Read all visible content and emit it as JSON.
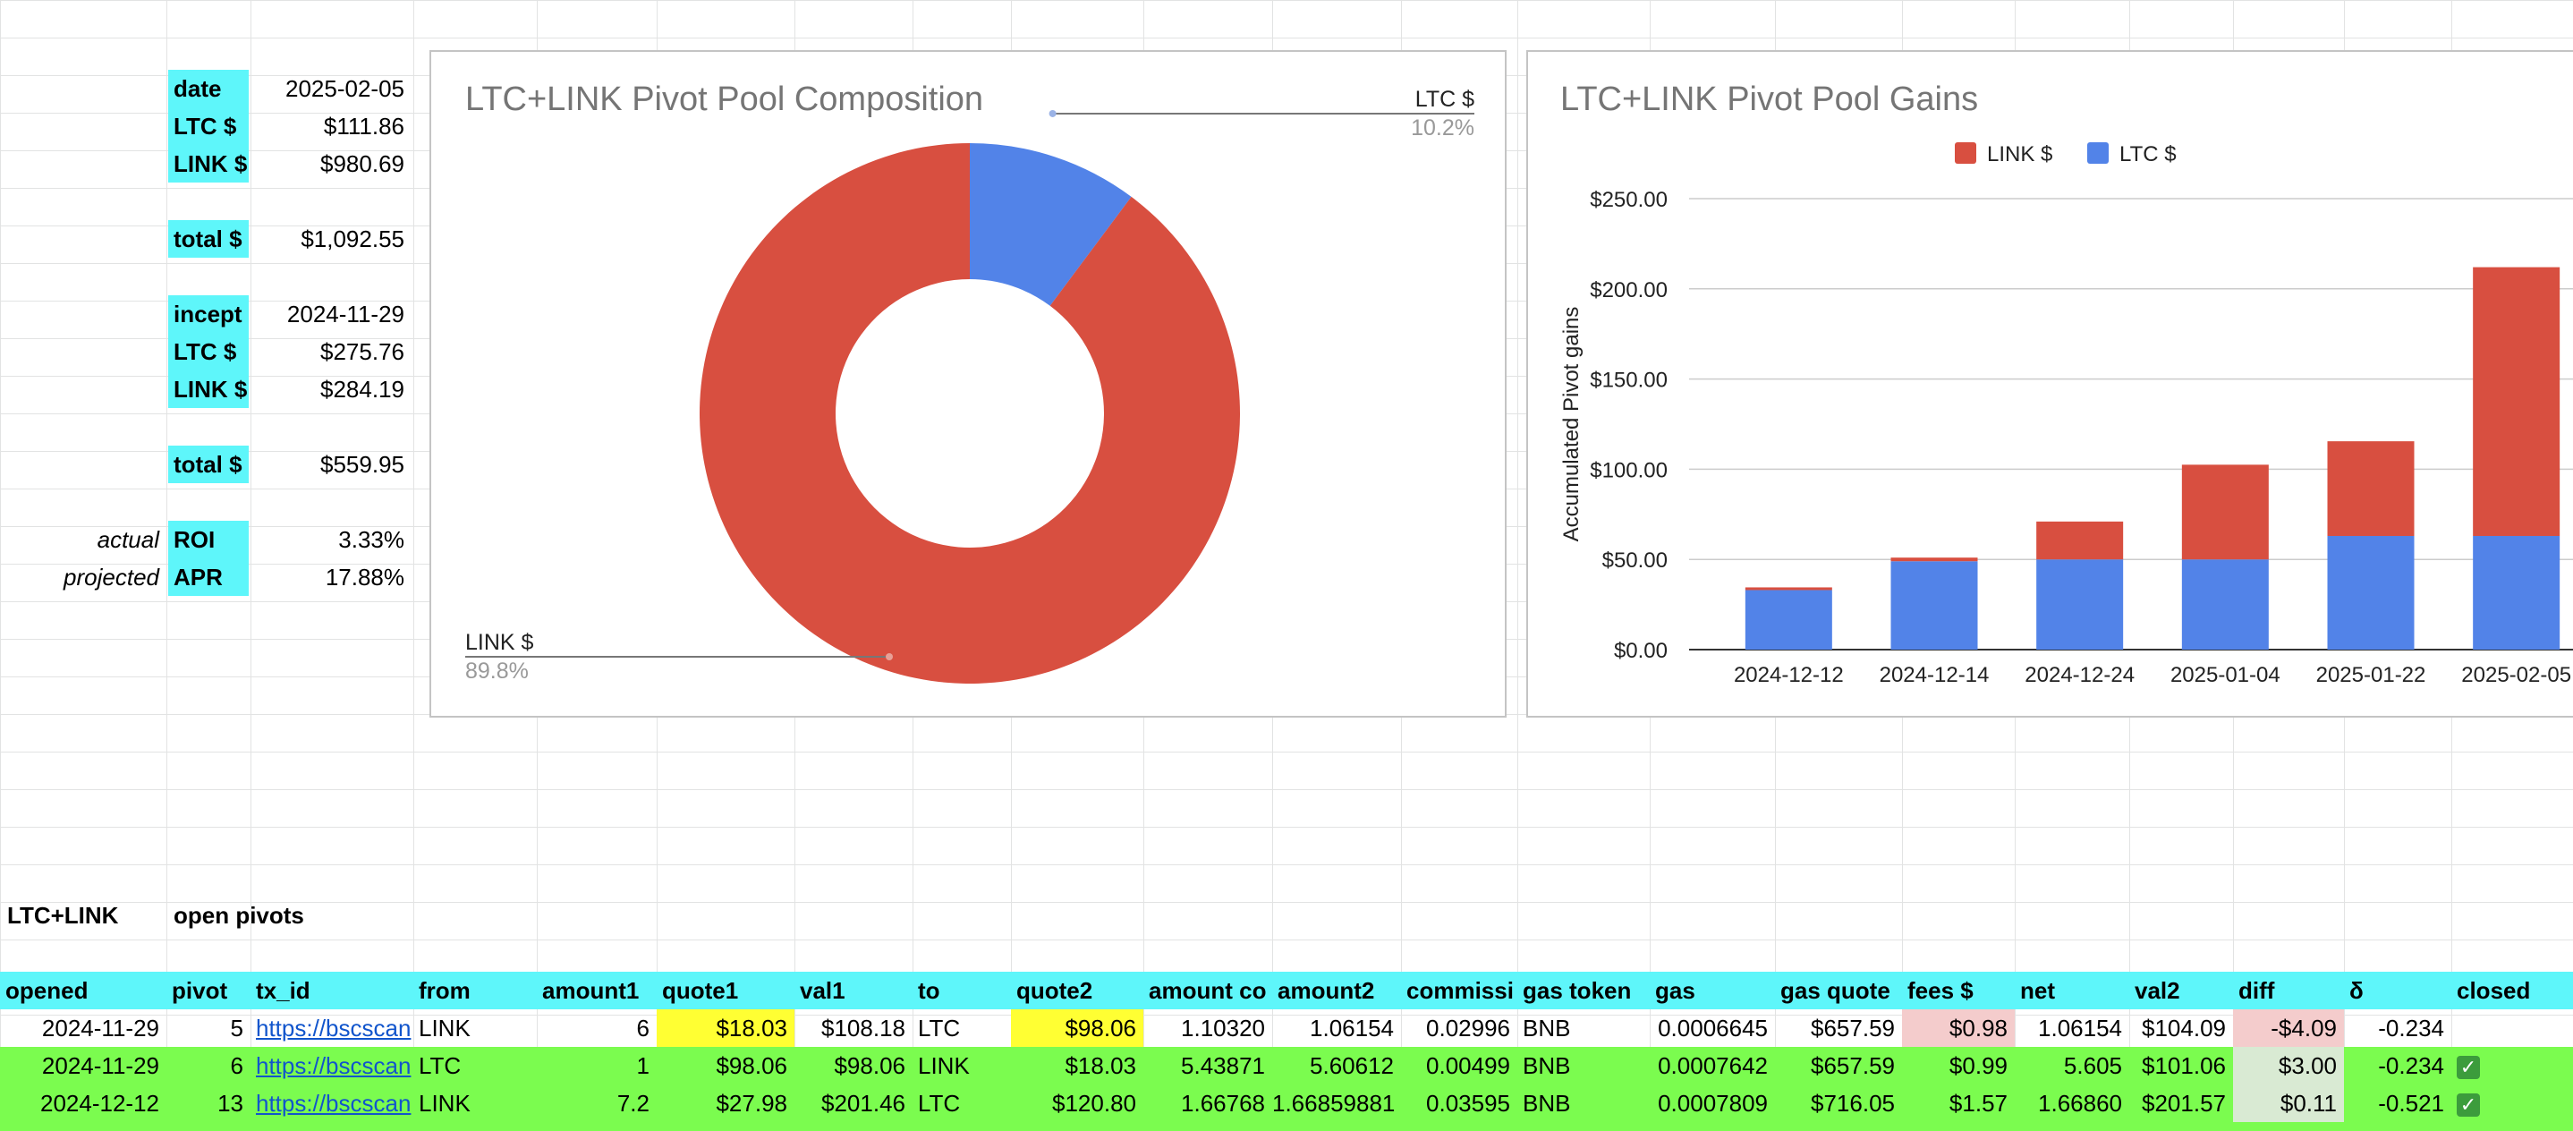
{
  "summary": {
    "current": [
      {
        "label": "date",
        "value": "2025-02-05"
      },
      {
        "label": "LTC $",
        "value": "$111.86"
      },
      {
        "label": "LINK $",
        "value": "$980.69"
      }
    ],
    "current_total": {
      "label": "total $",
      "value": "$1,092.55"
    },
    "inception": [
      {
        "label": "incept",
        "value": "2024-11-29"
      },
      {
        "label": "LTC $",
        "value": "$275.76"
      },
      {
        "label": "LINK $",
        "value": "$284.19"
      }
    ],
    "inception_total": {
      "label": "total $",
      "value": "$559.95"
    },
    "roi": {
      "prefix": "actual",
      "label": "ROI",
      "value": "3.33%"
    },
    "apr": {
      "prefix": "projected",
      "label": "APR",
      "value": "17.88%"
    }
  },
  "chart_data": [
    {
      "type": "pie",
      "title": "LTC+LINK Pivot Pool Composition",
      "donut": true,
      "slices": [
        {
          "name": "LTC $",
          "value": 10.2,
          "label": "10.2%",
          "color": "#5283e8"
        },
        {
          "name": "LINK $",
          "value": 89.8,
          "label": "89.8%",
          "color": "#d84f40"
        }
      ]
    },
    {
      "type": "bar",
      "stacked": true,
      "title": "LTC+LINK Pivot Pool Gains",
      "ylabel": "Accumulated Pivot gains",
      "xlabel": "",
      "categories": [
        "2024-12-12",
        "2024-12-14",
        "2024-12-24",
        "2025-01-04",
        "2025-01-22",
        "2025-02-05"
      ],
      "series": [
        {
          "name": "LTC $",
          "color": "#5283e8",
          "values": [
            33,
            49,
            50,
            50,
            63,
            63
          ]
        },
        {
          "name": "LINK $",
          "color": "#d84f40",
          "values": [
            1.5,
            2,
            21,
            52.5,
            52.5,
            149
          ]
        }
      ],
      "legend_order": [
        "LINK $",
        "LTC $"
      ],
      "legend_position": "top",
      "ylim": [
        0,
        250
      ],
      "yticks": [
        "$0.00",
        "$50.00",
        "$100.00",
        "$150.00",
        "$200.00",
        "$250.00"
      ],
      "grid": true
    }
  ],
  "section": {
    "label": "LTC+LINK",
    "title": "open pivots"
  },
  "table": {
    "columns": [
      "opened",
      "pivot",
      "tx_id",
      "from",
      "amount1",
      "quote1",
      "val1",
      "to",
      "quote2",
      "amount co",
      "amount2",
      "commissi",
      "gas token",
      "gas",
      "gas quote",
      "fees $",
      "net",
      "val2",
      "diff",
      "δ",
      "closed"
    ],
    "rows": [
      {
        "style": "white",
        "cells": [
          "2024-11-29",
          "5",
          "https://bscscan",
          "LINK",
          "6",
          "$18.03",
          "$108.18",
          "LTC",
          "$98.06",
          "1.10320",
          "1.06154",
          "0.02996",
          "BNB",
          "0.0006645",
          "$657.59",
          "$0.98",
          "1.06154",
          "$104.09",
          "-$4.09",
          "-0.234",
          ""
        ]
      },
      {
        "style": "green",
        "cells": [
          "2024-11-29",
          "6",
          "https://bscscan",
          "LTC",
          "1",
          "$98.06",
          "$98.06",
          "LINK",
          "$18.03",
          "5.43871",
          "5.60612",
          "0.00499",
          "BNB",
          "0.0007642",
          "$657.59",
          "$0.99",
          "5.605",
          "$101.06",
          "$3.00",
          "-0.234",
          "✓"
        ]
      },
      {
        "style": "green",
        "cells": [
          "2024-12-12",
          "13",
          "https://bscscan",
          "LINK",
          "7.2",
          "$27.98",
          "$201.46",
          "LTC",
          "$120.80",
          "1.66768",
          "1.66859881",
          "0.03595",
          "BNB",
          "0.0007809",
          "$716.05",
          "$1.57",
          "1.66860",
          "$201.57",
          "$0.11",
          "-0.521",
          "✓"
        ]
      }
    ]
  }
}
